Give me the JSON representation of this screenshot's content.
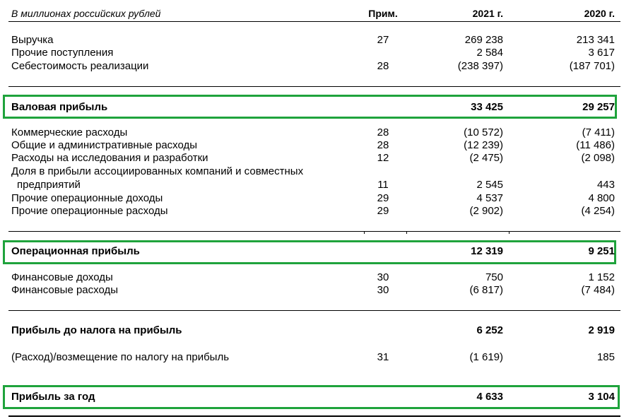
{
  "header": {
    "units": "В миллионах российских рублей",
    "note_col": "Прим.",
    "col_2021": "2021 г.",
    "col_2020": "2020 г."
  },
  "rows": [
    {
      "label": "Выручка",
      "note": "27",
      "y2021": "269 238",
      "y2020": "213 341"
    },
    {
      "label": "Прочие поступления",
      "note": "",
      "y2021": "2 584",
      "y2020": "3 617"
    },
    {
      "label": "Себестоимость реализации",
      "note": "28",
      "y2021": "(238 397)",
      "y2020": "(187 701)"
    },
    {
      "label": "Валовая прибыль",
      "note": "",
      "y2021": "33 425",
      "y2020": "29 257"
    },
    {
      "label": "Коммерческие расходы",
      "note": "28",
      "y2021": "(10 572)",
      "y2020": "(7 411)"
    },
    {
      "label": "Общие и административные расходы",
      "note": "28",
      "y2021": "(12 239)",
      "y2020": "(11 486)"
    },
    {
      "label": "Расходы на исследования и разработки",
      "note": "12",
      "y2021": "(2 475)",
      "y2020": "(2 098)"
    },
    {
      "label": "Доля в прибыли ассоциированных компаний и совместных",
      "note": "",
      "y2021": "",
      "y2020": ""
    },
    {
      "label": "предприятий",
      "note": "11",
      "y2021": "2 545",
      "y2020": "443"
    },
    {
      "label": "Прочие операционные доходы",
      "note": "29",
      "y2021": "4 537",
      "y2020": "4 800"
    },
    {
      "label": "Прочие операционные расходы",
      "note": "29",
      "y2021": "(2 902)",
      "y2020": "(4 254)"
    },
    {
      "label": "Операционная прибыль",
      "note": "",
      "y2021": "12 319",
      "y2020": "9 251"
    },
    {
      "label": "Финансовые доходы",
      "note": "30",
      "y2021": "750",
      "y2020": "1 152"
    },
    {
      "label": "Финансовые расходы",
      "note": "30",
      "y2021": "(6 817)",
      "y2020": "(7 484)"
    },
    {
      "label": "Прибыль до налога на прибыль",
      "note": "",
      "y2021": "6 252",
      "y2020": "2 919"
    },
    {
      "label": "(Расход)/возмещение по налогу на прибыль",
      "note": "31",
      "y2021": "(1 619)",
      "y2020": "185"
    },
    {
      "label": "Прибыль за год",
      "note": "",
      "y2021": "4 633",
      "y2020": "3 104"
    }
  ],
  "colors": {
    "highlight": "#1fa33c"
  }
}
